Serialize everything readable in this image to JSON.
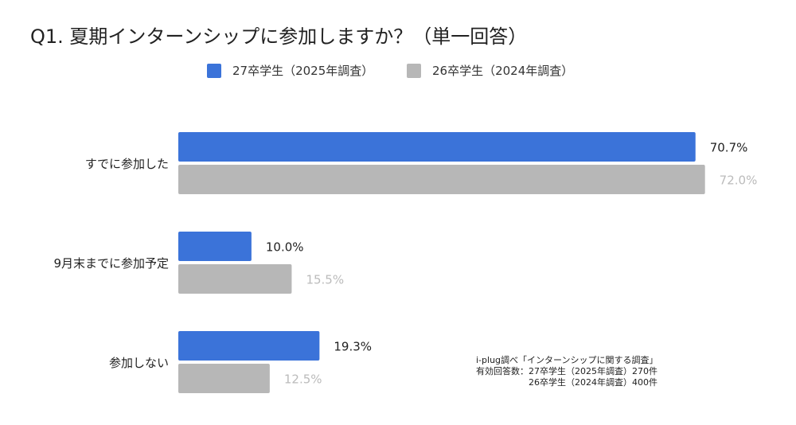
{
  "chart_data": {
    "type": "bar",
    "orientation": "horizontal",
    "title": "Q1. 夏期インターンシップに参加しますか？（単一回答）",
    "categories": [
      "すでに参加した",
      "9月末までに参加予定",
      "参加しない"
    ],
    "series": [
      {
        "name": "27卒学生（2025年調査）",
        "color": "#3b73d9",
        "label_color": "#222222",
        "values": [
          70.7,
          10.0,
          19.3
        ]
      },
      {
        "name": "26卒学生（2024年調査）",
        "color": "#b7b7b7",
        "label_color": "#bbbbbb",
        "values": [
          72.0,
          15.5,
          12.5
        ]
      }
    ],
    "value_format": "%",
    "xlim": [
      0,
      75
    ],
    "grid": false,
    "legend": "top"
  },
  "source": {
    "line1": "i-plug調べ「インターンシップに関する調査」",
    "line2": "有効回答数：27卒学生（2025年調査）270件",
    "line3": "　　　　　　26卒学生（2024年調査）400件"
  }
}
